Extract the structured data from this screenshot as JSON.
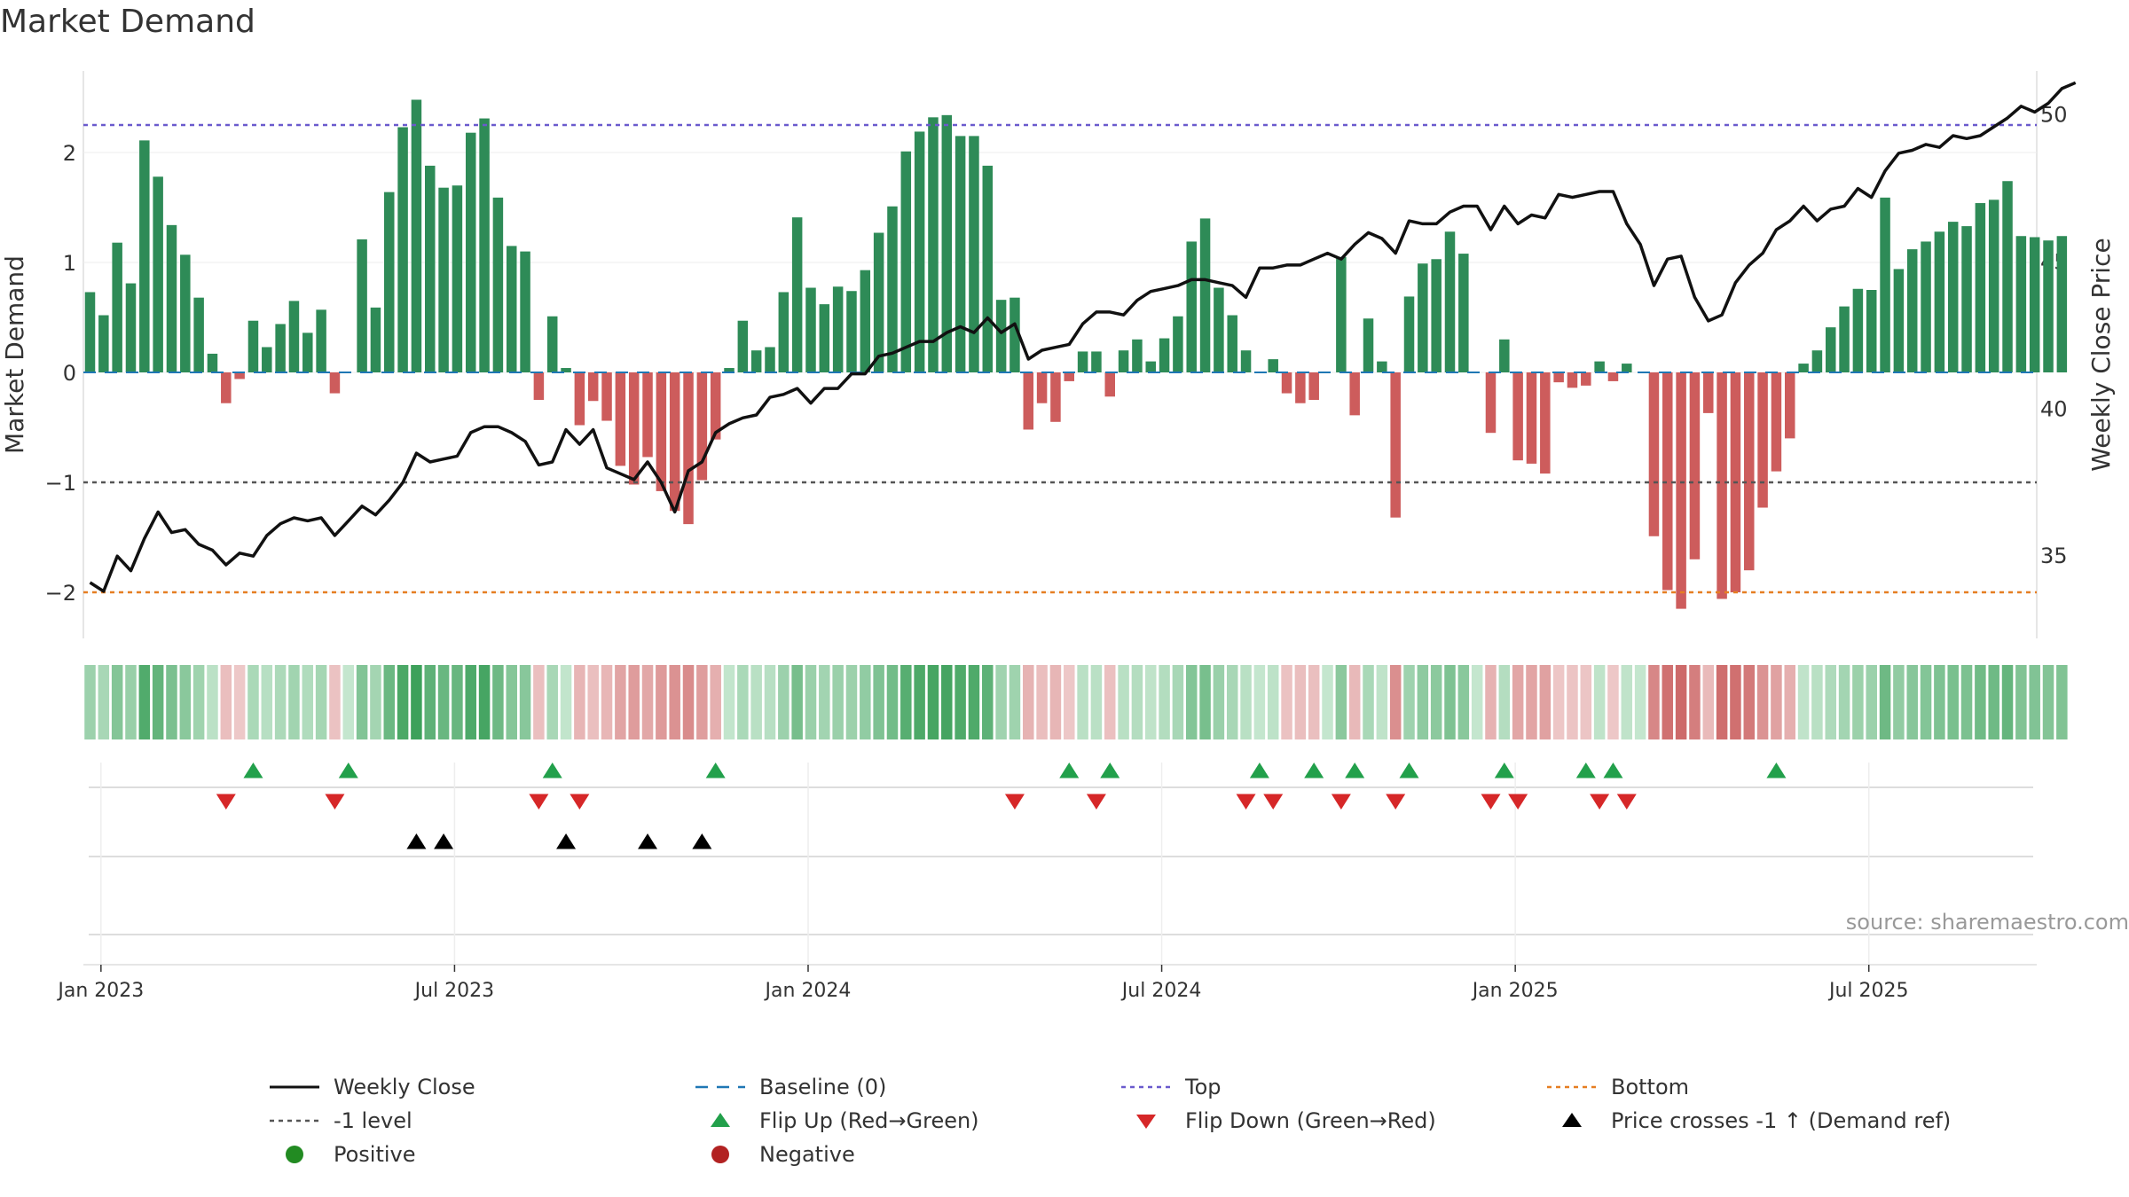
{
  "chart_data": {
    "type": "bar",
    "title": "Market Demand",
    "ylabel": "Market Demand",
    "y2label": "Weekly Close Price",
    "ylim": [
      -2.5,
      2.7
    ],
    "y2lim": [
      32.2,
      51.5
    ],
    "yticks": [
      -2,
      -1,
      0,
      1,
      2
    ],
    "ytick_labels": [
      "−2",
      "−1",
      "0",
      "1",
      "2"
    ],
    "y2ticks": [
      35,
      40,
      45,
      50
    ],
    "y2tick_labels": [
      "35",
      "40",
      "45",
      "50"
    ],
    "top_level": 2.25,
    "bottom_level": -2.0,
    "minus1_level": -1.0,
    "xtick_week_index": [
      1,
      27,
      53,
      79,
      105,
      131
    ],
    "xtick_labels": [
      "Jan 2023",
      "Jul 2023",
      "Jan 2024",
      "Jul 2024",
      "Jan 2025",
      "Jul 2025"
    ],
    "source": "source: sharemaestro.com",
    "demand": [
      0.73,
      0.52,
      1.18,
      0.81,
      2.11,
      1.78,
      1.34,
      1.07,
      0.68,
      0.17,
      -0.28,
      -0.06,
      0.47,
      0.23,
      0.44,
      0.65,
      0.36,
      0.57,
      -0.19,
      0.0,
      1.21,
      0.59,
      1.64,
      2.23,
      2.48,
      1.88,
      1.68,
      1.7,
      2.18,
      2.31,
      1.59,
      1.15,
      1.1,
      -0.25,
      0.51,
      0.04,
      -0.48,
      -0.26,
      -0.44,
      -0.85,
      -1.02,
      -0.77,
      -1.08,
      -1.26,
      -1.38,
      -0.98,
      -0.61,
      0.04,
      0.47,
      0.2,
      0.23,
      0.73,
      1.41,
      0.77,
      0.62,
      0.78,
      0.74,
      0.93,
      1.27,
      1.51,
      2.01,
      2.19,
      2.32,
      2.34,
      2.15,
      2.15,
      1.88,
      0.66,
      0.68,
      -0.52,
      -0.28,
      -0.45,
      -0.08,
      0.19,
      0.19,
      -0.22,
      0.2,
      0.3,
      0.1,
      0.31,
      0.51,
      1.19,
      1.4,
      0.77,
      0.52,
      0.2,
      0.0,
      0.12,
      -0.19,
      -0.28,
      -0.25,
      0.0,
      1.05,
      -0.39,
      0.49,
      0.1,
      -1.32,
      0.69,
      0.99,
      1.03,
      1.28,
      1.08,
      0.0,
      -0.55,
      0.3,
      -0.8,
      -0.83,
      -0.92,
      -0.09,
      -0.14,
      -0.12,
      0.1,
      -0.08,
      0.08,
      0.0,
      -1.49,
      -1.98,
      -2.15,
      -1.7,
      -0.37,
      -2.06,
      -2.0,
      -1.8,
      -1.23,
      -0.9,
      -0.6,
      0.08,
      0.2,
      0.41,
      0.6,
      0.76,
      0.75,
      1.59,
      0.94,
      1.12,
      1.19,
      1.28,
      1.37,
      1.33,
      1.54,
      1.57,
      1.74,
      1.24,
      1.23,
      1.2,
      1.24
    ],
    "close": [
      34.1,
      33.8,
      35.0,
      34.5,
      35.6,
      36.5,
      35.8,
      35.9,
      35.4,
      35.2,
      34.7,
      35.1,
      35.0,
      35.7,
      36.1,
      36.3,
      36.2,
      36.3,
      35.7,
      36.2,
      36.7,
      36.4,
      36.9,
      37.5,
      38.5,
      38.2,
      38.3,
      38.4,
      39.2,
      39.4,
      39.4,
      39.2,
      38.9,
      38.1,
      38.2,
      39.3,
      38.8,
      39.3,
      38.0,
      37.8,
      37.6,
      38.2,
      37.5,
      36.5,
      37.9,
      38.2,
      39.2,
      39.5,
      39.7,
      39.8,
      40.4,
      40.5,
      40.7,
      40.2,
      40.7,
      40.7,
      41.2,
      41.2,
      41.8,
      41.9,
      42.1,
      42.3,
      42.3,
      42.6,
      42.8,
      42.6,
      43.1,
      42.6,
      42.9,
      41.7,
      42.0,
      42.1,
      42.2,
      42.9,
      43.3,
      43.3,
      43.2,
      43.7,
      44.0,
      44.1,
      44.2,
      44.4,
      44.4,
      44.3,
      44.2,
      43.8,
      44.8,
      44.8,
      44.9,
      44.9,
      45.1,
      45.3,
      45.1,
      45.6,
      46.0,
      45.8,
      45.3,
      46.4,
      46.3,
      46.3,
      46.7,
      46.9,
      46.9,
      46.1,
      46.9,
      46.3,
      46.6,
      46.5,
      47.3,
      47.2,
      47.3,
      47.4,
      47.4,
      46.3,
      45.6,
      44.2,
      45.1,
      45.2,
      43.8,
      43.0,
      43.2,
      44.3,
      44.9,
      45.3,
      46.1,
      46.4,
      46.9,
      46.4,
      46.8,
      46.9,
      47.5,
      47.2,
      48.1,
      48.7,
      48.8,
      49.0,
      48.9,
      49.3,
      49.2,
      49.3,
      49.6,
      49.9,
      50.3,
      50.1,
      50.4,
      50.9,
      51.1
    ],
    "flip_up_weeks": [
      12,
      19,
      34,
      46,
      72,
      75,
      86,
      90,
      93,
      97,
      104,
      110,
      112,
      124
    ],
    "flip_down_weeks": [
      10,
      18,
      33,
      36,
      68,
      74,
      85,
      87,
      92,
      96,
      103,
      105,
      111,
      113
    ],
    "price_cross_weeks": [
      24,
      26,
      35,
      41,
      45
    ],
    "colors": {
      "positive": "#2e8b57",
      "negative": "#cd5c5c",
      "close_line": "#111111",
      "baseline": "#1f77b4",
      "top": "#6a5acd",
      "bottom": "#e67e22",
      "minus1": "#555555",
      "flip_up": "#22a04b",
      "flip_down": "#d62728",
      "price_cross": "#000000",
      "positive_dot": "#228b22",
      "negative_dot": "#b22222"
    }
  },
  "legend": {
    "weekly_close": "Weekly Close",
    "baseline": "Baseline (0)",
    "top": "Top",
    "bottom": "Bottom",
    "minus1": "-1 level",
    "flip_up": "Flip Up (Red→Green)",
    "flip_down": "Flip Down (Green→Red)",
    "price_cross": "Price crosses -1 ↑ (Demand ref)",
    "positive": "Positive",
    "negative": "Negative"
  }
}
